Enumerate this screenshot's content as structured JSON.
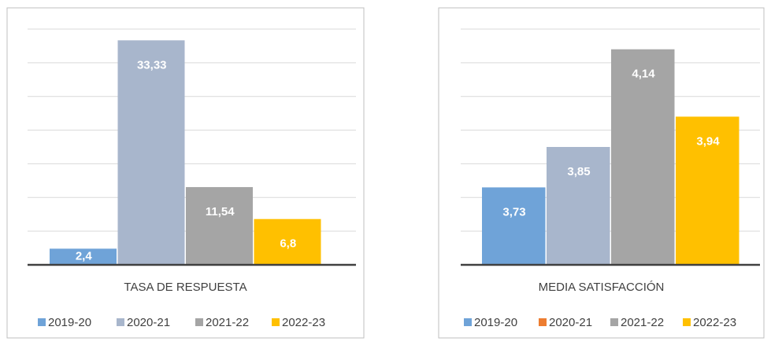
{
  "chart_data": [
    {
      "type": "bar",
      "title": "TASA DE RESPUESTA",
      "categories": [
        "2019-20",
        "2020-21",
        "2021-22",
        "2022-23"
      ],
      "values": [
        2.4,
        33.33,
        11.54,
        6.8
      ],
      "value_labels": [
        "2,4",
        "33,33",
        "11,54",
        "6,8"
      ],
      "colors": [
        "#6fa3d8",
        "#a8b6cc",
        "#a5a5a5",
        "#ffc000"
      ],
      "legend_colors": [
        "#6fa3d8",
        "#a8b6cc",
        "#a5a5a5",
        "#ffc000"
      ],
      "ylim": [
        0,
        35
      ],
      "yticks": [
        0,
        5,
        10,
        15,
        20,
        25,
        30,
        35
      ],
      "grid": true
    },
    {
      "type": "bar",
      "title": "MEDIA SATISFACCIÓN",
      "categories": [
        "2019-20",
        "2020-21",
        "2021-22",
        "2022-23"
      ],
      "values": [
        3.73,
        3.85,
        4.14,
        3.94
      ],
      "value_labels": [
        "3,73",
        "3,85",
        "4,14",
        "3,94"
      ],
      "colors": [
        "#6fa3d8",
        "#a8b6cc",
        "#a5a5a5",
        "#ffc000"
      ],
      "legend_colors": [
        "#6fa3d8",
        "#ed7d31",
        "#a5a5a5",
        "#ffc000"
      ],
      "ylim": [
        3.5,
        4.2
      ],
      "yticks": [
        3.5,
        3.6,
        3.7,
        3.8,
        3.9,
        4.0,
        4.1,
        4.2
      ],
      "grid": true
    }
  ]
}
